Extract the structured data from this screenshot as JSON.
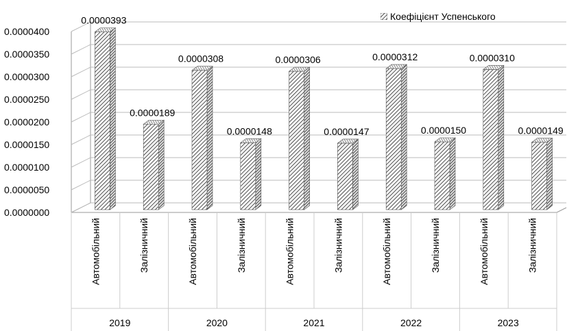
{
  "chart_data": {
    "type": "bar",
    "style": "3d-hatched",
    "legend": {
      "label": "Коефіцієнт Успенського",
      "position": "top-right"
    },
    "ylim": [
      0,
      4e-05
    ],
    "yticks": [
      "0.0000000",
      "0.0000050",
      "0.0000100",
      "0.0000150",
      "0.0000200",
      "0.0000250",
      "0.0000300",
      "0.0000350",
      "0.0000400"
    ],
    "grid": true,
    "groups": [
      {
        "year": "2019",
        "bars": [
          {
            "category": "Автомобільний",
            "value": 3.93e-05,
            "label": "0.0000393"
          },
          {
            "category": "Залізничний",
            "value": 1.89e-05,
            "label": "0.0000189"
          }
        ]
      },
      {
        "year": "2020",
        "bars": [
          {
            "category": "Автомобільний",
            "value": 3.08e-05,
            "label": "0.0000308"
          },
          {
            "category": "Залізничний",
            "value": 1.48e-05,
            "label": "0.0000148"
          }
        ]
      },
      {
        "year": "2021",
        "bars": [
          {
            "category": "Автомобільний",
            "value": 3.06e-05,
            "label": "0.0000306"
          },
          {
            "category": "Залізничний",
            "value": 1.47e-05,
            "label": "0.0000147"
          }
        ]
      },
      {
        "year": "2022",
        "bars": [
          {
            "category": "Автомобільний",
            "value": 3.12e-05,
            "label": "0.0000312"
          },
          {
            "category": "Залізничний",
            "value": 1.5e-05,
            "label": "0.0000150"
          }
        ]
      },
      {
        "year": "2023",
        "bars": [
          {
            "category": "Автомобільний",
            "value": 3.1e-05,
            "label": "0.0000310"
          },
          {
            "category": "Залізничний",
            "value": 1.49e-05,
            "label": "0.0000149"
          }
        ]
      }
    ]
  }
}
